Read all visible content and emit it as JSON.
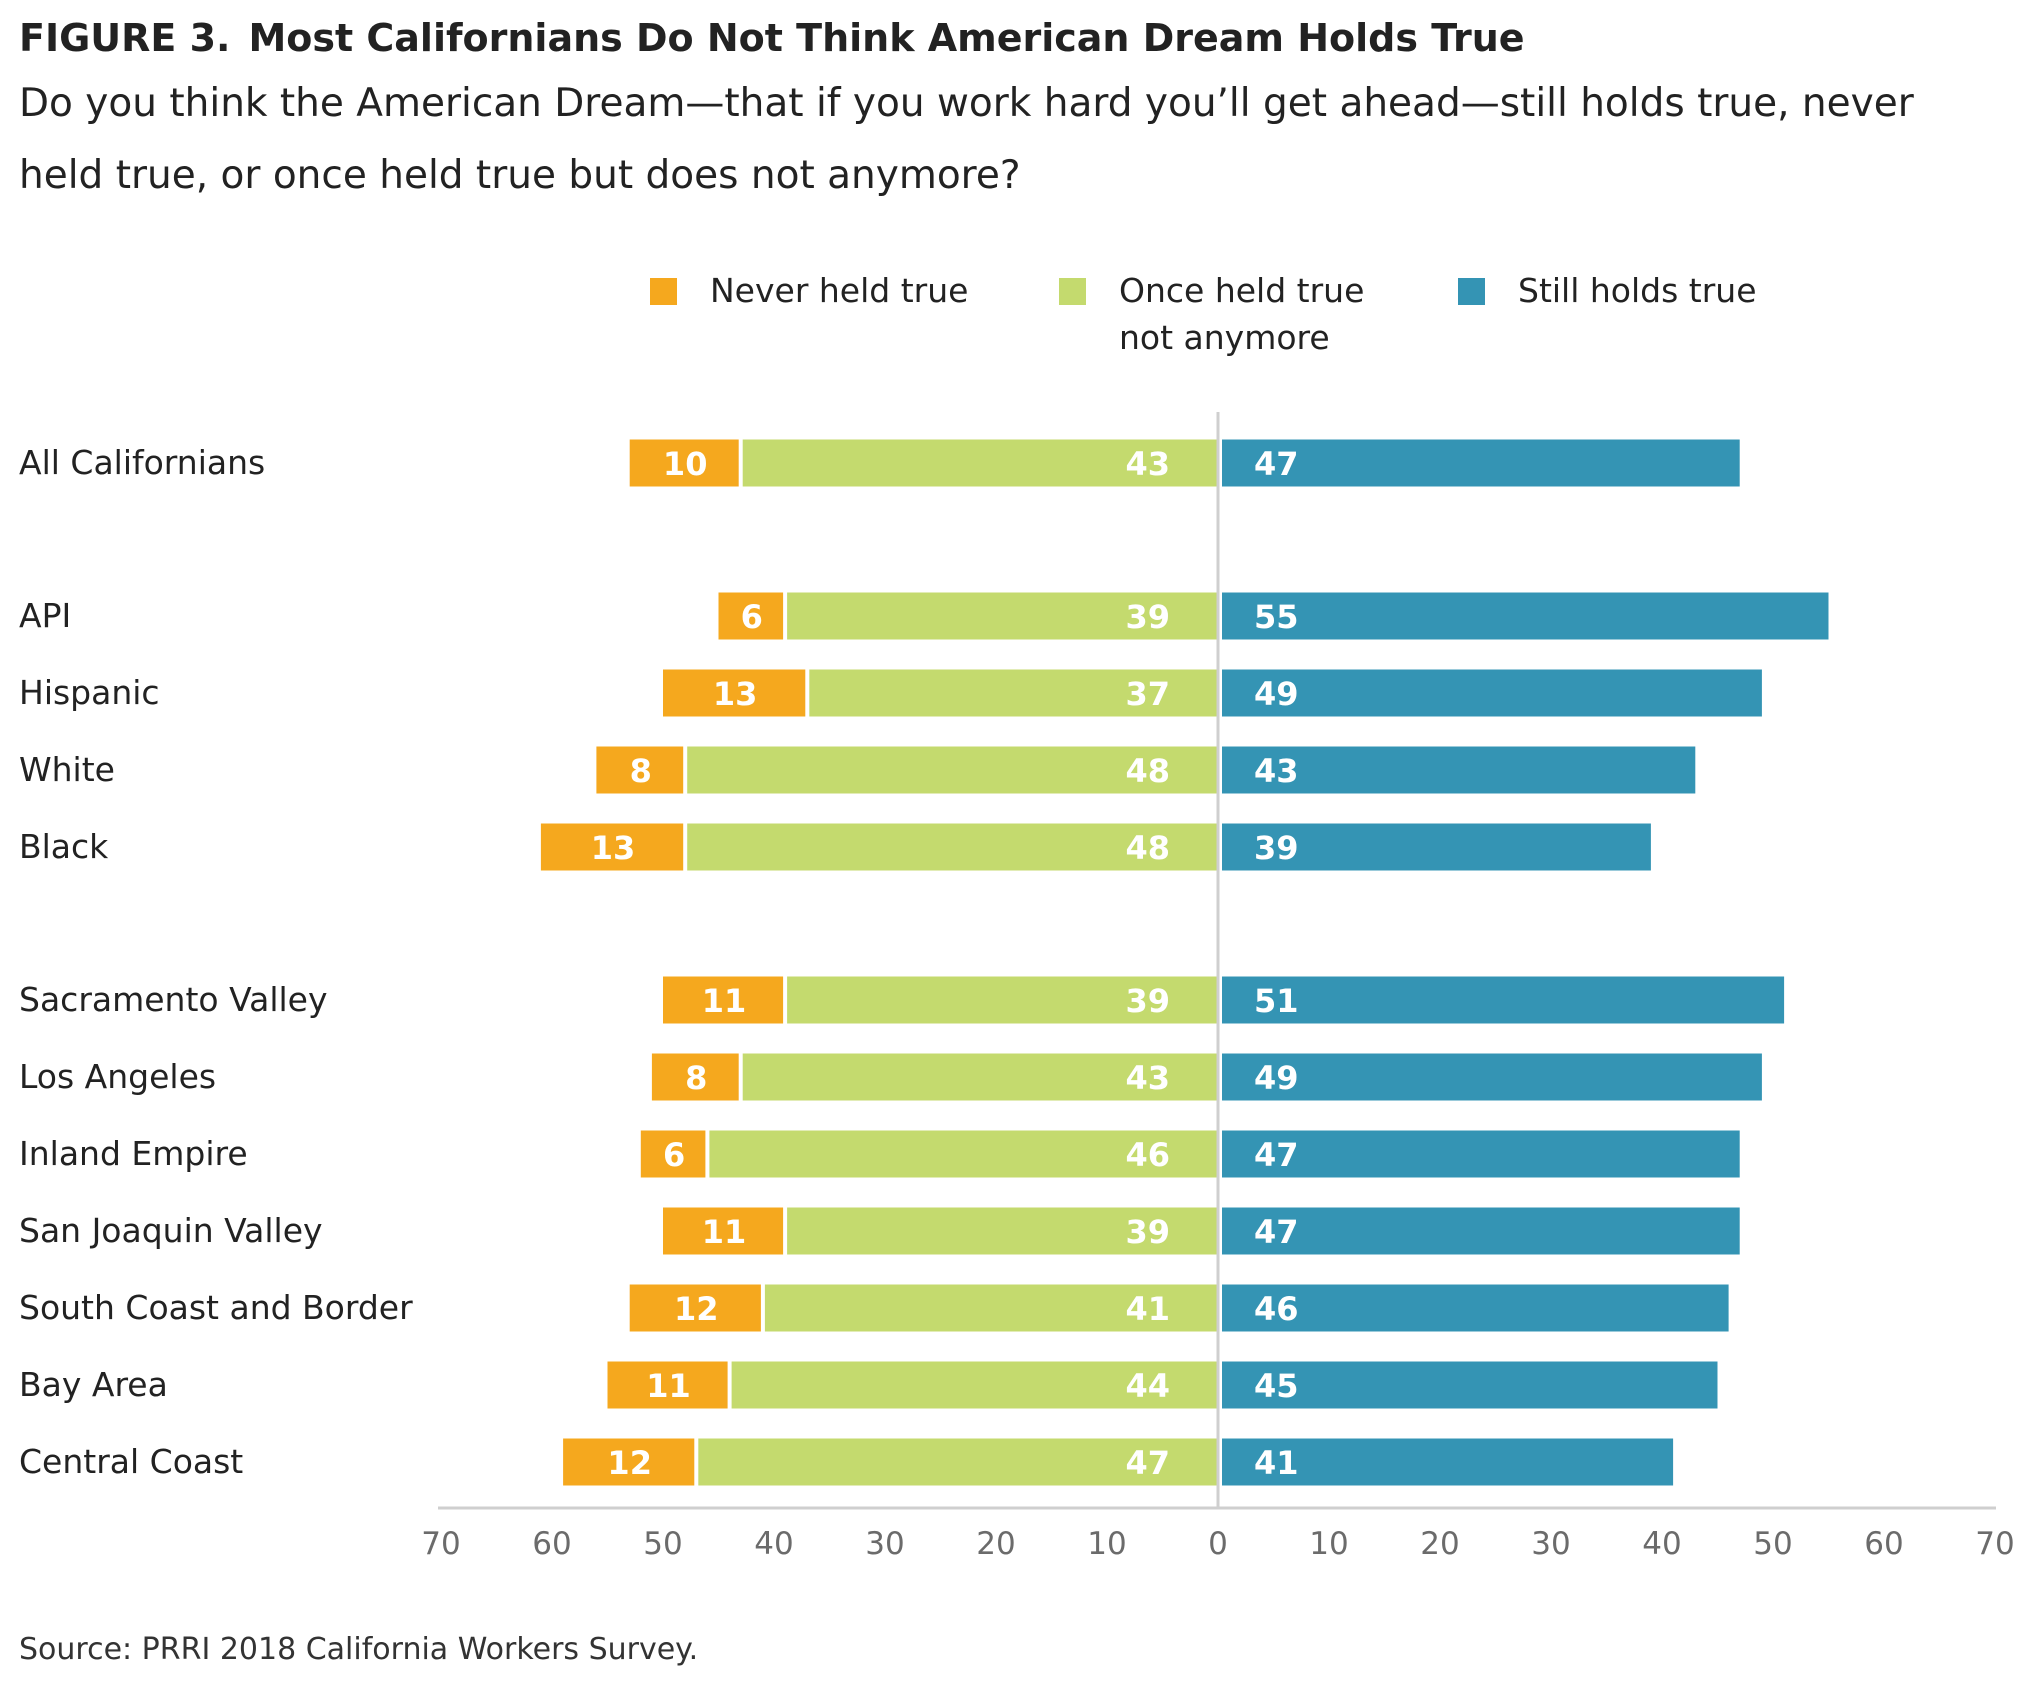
{
  "figure": {
    "label": "FIGURE 3.",
    "title": "Most Californians Do Not Think American Dream Holds True",
    "subtitle": "Do you think the American Dream—that if you work hard you’ll get ahead—still holds true, never held true, or once held true but does not anymore?",
    "source": "Source: PRRI 2018 California Workers Survey."
  },
  "colors": {
    "never": "#F5A81E",
    "once": "#C4DA6E",
    "still": "#3494B4",
    "axis": "#cfcfcf",
    "tick_text": "#6b6b6b",
    "label_text": "#222222"
  },
  "chart_data": {
    "type": "bar",
    "orientation": "horizontal-diverging",
    "title": "Most Californians Do Not Think American Dream Holds True",
    "xlim": [
      -70,
      70
    ],
    "xticks": [
      70,
      60,
      50,
      40,
      30,
      20,
      10,
      0,
      10,
      20,
      30,
      40,
      50,
      60,
      70
    ],
    "legend": {
      "placement": "top",
      "entries": [
        {
          "key": "never",
          "lines": [
            "Never held true"
          ]
        },
        {
          "key": "once",
          "lines": [
            "Once held true",
            "not anymore"
          ]
        },
        {
          "key": "still",
          "lines": [
            "Still holds true"
          ]
        }
      ]
    },
    "series": [
      {
        "key": "never",
        "name": "Never held true",
        "side": "left-outer"
      },
      {
        "key": "once",
        "name": "Once held true not anymore",
        "side": "left-inner"
      },
      {
        "key": "still",
        "name": "Still holds true",
        "side": "right"
      }
    ],
    "groups": [
      {
        "rows": [
          {
            "category": "All Californians",
            "never": 10,
            "once": 43,
            "still": 47
          }
        ]
      },
      {
        "rows": [
          {
            "category": "API",
            "never": 6,
            "once": 39,
            "still": 55
          },
          {
            "category": "Hispanic",
            "never": 13,
            "once": 37,
            "still": 49
          },
          {
            "category": "White",
            "never": 8,
            "once": 48,
            "still": 43
          },
          {
            "category": "Black",
            "never": 13,
            "once": 48,
            "still": 39
          }
        ]
      },
      {
        "rows": [
          {
            "category": "Sacramento Valley",
            "never": 11,
            "once": 39,
            "still": 51
          },
          {
            "category": "Los Angeles",
            "never": 8,
            "once": 43,
            "still": 49
          },
          {
            "category": "Inland Empire",
            "never": 6,
            "once": 46,
            "still": 47
          },
          {
            "category": "San Joaquin Valley",
            "never": 11,
            "once": 39,
            "still": 47
          },
          {
            "category": "South Coast and Border",
            "never": 12,
            "once": 41,
            "still": 46
          },
          {
            "category": "Bay Area",
            "never": 11,
            "once": 44,
            "still": 45
          },
          {
            "category": "Central Coast",
            "never": 12,
            "once": 47,
            "still": 41
          }
        ]
      }
    ]
  }
}
